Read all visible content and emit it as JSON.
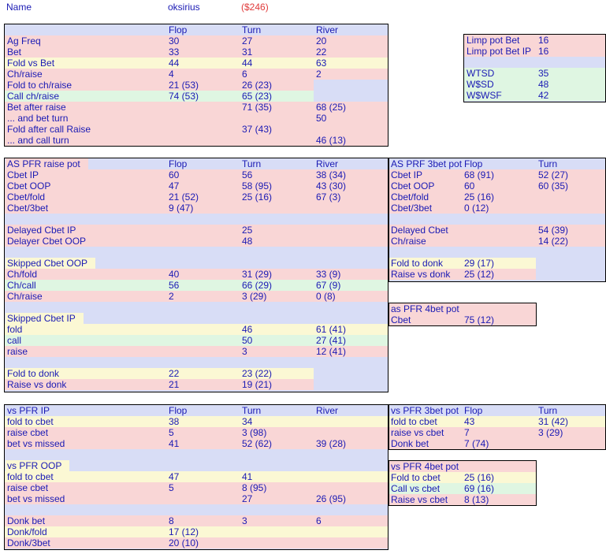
{
  "header": {
    "name_label": "Name",
    "player": "oksirius",
    "amount": "($246)"
  },
  "general": {
    "cols": [
      "",
      "Flop",
      "Turn",
      "River"
    ],
    "rows": [
      [
        "Ag Freq",
        "30",
        "27",
        "20"
      ],
      [
        "Bet",
        "33",
        "31",
        "22"
      ],
      [
        "Fold vs Bet",
        "44",
        "44",
        "63"
      ],
      [
        "Ch/raise",
        "4",
        "6",
        "2"
      ],
      [
        "Fold to ch/raise",
        "21 (53)",
        "26 (23)",
        ""
      ],
      [
        "Call ch/raise",
        "74 (53)",
        "65 (23)",
        ""
      ],
      [
        "Bet after raise",
        "",
        "71 (35)",
        "68 (25)"
      ],
      [
        "... and bet turn",
        "",
        "",
        "50"
      ],
      [
        "Fold after call Raise",
        "",
        "37 (43)",
        ""
      ],
      [
        "... and call turn",
        "",
        "",
        "46 (13)"
      ]
    ]
  },
  "limp": {
    "rows": [
      [
        "Limp pot Bet",
        "16"
      ],
      [
        "Limp pot Bet IP",
        "16"
      ],
      [
        "",
        ""
      ],
      [
        "WTSD",
        "35"
      ],
      [
        "W$SD",
        "48"
      ],
      [
        "W$WSF",
        "42"
      ]
    ]
  },
  "pfr_raise": {
    "cols": [
      "AS PFR raise pot",
      "Flop",
      "Turn",
      "River"
    ],
    "rows": [
      [
        "Cbet IP",
        "60",
        "56",
        "38 (34)"
      ],
      [
        "Cbet OOP",
        "47",
        "58 (95)",
        "43 (30)"
      ],
      [
        "Cbet/fold",
        "21 (52)",
        "25 (16)",
        "67 (3)"
      ],
      [
        "Cbet/3bet",
        "9 (47)",
        "",
        ""
      ],
      [
        "",
        "",
        "",
        ""
      ],
      [
        "Delayed Cbet IP",
        "",
        "25",
        ""
      ],
      [
        "Delayer Cbet OOP",
        "",
        "48",
        ""
      ],
      [
        "",
        "",
        "",
        ""
      ],
      [
        "Skipped Cbet OOP",
        "",
        "",
        ""
      ],
      [
        "Ch/fold",
        "40",
        "31 (29)",
        "33 (9)"
      ],
      [
        "Ch/call",
        "56",
        "66 (29)",
        "67 (9)"
      ],
      [
        "Ch/raise",
        "2",
        "3 (29)",
        "0 (8)"
      ],
      [
        "",
        "",
        "",
        ""
      ],
      [
        "Skipped Cbet IP",
        "",
        "",
        ""
      ],
      [
        "fold",
        "",
        "46",
        "61 (41)"
      ],
      [
        "call",
        "",
        "50",
        "27 (41)"
      ],
      [
        "raise",
        "",
        "3",
        "12 (41)"
      ],
      [
        "",
        "",
        "",
        ""
      ],
      [
        "Fold to donk",
        "22",
        "23 (22)",
        ""
      ],
      [
        "Raise vs donk",
        "21",
        "19 (21)",
        ""
      ]
    ]
  },
  "prf_3bet": {
    "cols": [
      "AS PRF 3bet pot",
      "Flop",
      "Turn"
    ],
    "rows": [
      [
        "Cbet IP",
        "68 (91)",
        "52 (27)"
      ],
      [
        "Cbet OOP",
        "60",
        "60 (35)"
      ],
      [
        "Cbet/fold",
        "25 (16)",
        ""
      ],
      [
        "Cbet/3bet",
        "0 (12)",
        ""
      ],
      [
        "",
        "",
        ""
      ],
      [
        "Delayed Cbet",
        "",
        "54 (39)"
      ],
      [
        "Ch/raise",
        "",
        "14 (22)"
      ],
      [
        "",
        "",
        ""
      ],
      [
        "Fold to donk",
        "29 (17)",
        ""
      ],
      [
        "Raise vs donk",
        "25 (12)",
        ""
      ]
    ]
  },
  "pfr_4bet": {
    "title": "as PFR 4bet pot",
    "rows": [
      [
        "Cbet",
        "75 (12)"
      ]
    ]
  },
  "vs_pfr": {
    "cols": [
      "vs PFR IP",
      "Flop",
      "Turn",
      "River"
    ],
    "rows": [
      [
        "fold to cbet",
        "38",
        "34",
        ""
      ],
      [
        "raise cbet",
        "5",
        "3 (98)",
        ""
      ],
      [
        "bet vs missed",
        "41",
        "52 (62)",
        "39 (28)"
      ],
      [
        "",
        "",
        "",
        ""
      ],
      [
        "vs PFR OOP",
        "",
        "",
        ""
      ],
      [
        "fold to cbet",
        "47",
        "41",
        ""
      ],
      [
        "raise cbet",
        "5",
        "8 (95)",
        ""
      ],
      [
        "bet vs missed",
        "",
        "27",
        "26 (95)"
      ],
      [
        "",
        "",
        "",
        ""
      ],
      [
        "Donk bet",
        "8",
        "3",
        "6"
      ],
      [
        "Donk/fold",
        "17 (12)",
        "",
        ""
      ],
      [
        "Donk/3bet",
        "20 (10)",
        "",
        ""
      ]
    ]
  },
  "vs_3bet": {
    "cols": [
      "vs PFR 3bet pot",
      "Flop",
      "Turn"
    ],
    "rows": [
      [
        "fold to cbet",
        "43",
        "31 (42)"
      ],
      [
        "raise vs cbet",
        "7",
        "3 (29)"
      ],
      [
        "Donk bet",
        "7 (74)",
        ""
      ]
    ]
  },
  "vs_4bet": {
    "title": "vs PFR 4bet pot",
    "rows": [
      [
        "Fold to cbet",
        "25 (16)"
      ],
      [
        "Call vs cbet",
        "69 (16)"
      ],
      [
        "Raise vs cbet",
        "8 (13)"
      ]
    ]
  }
}
